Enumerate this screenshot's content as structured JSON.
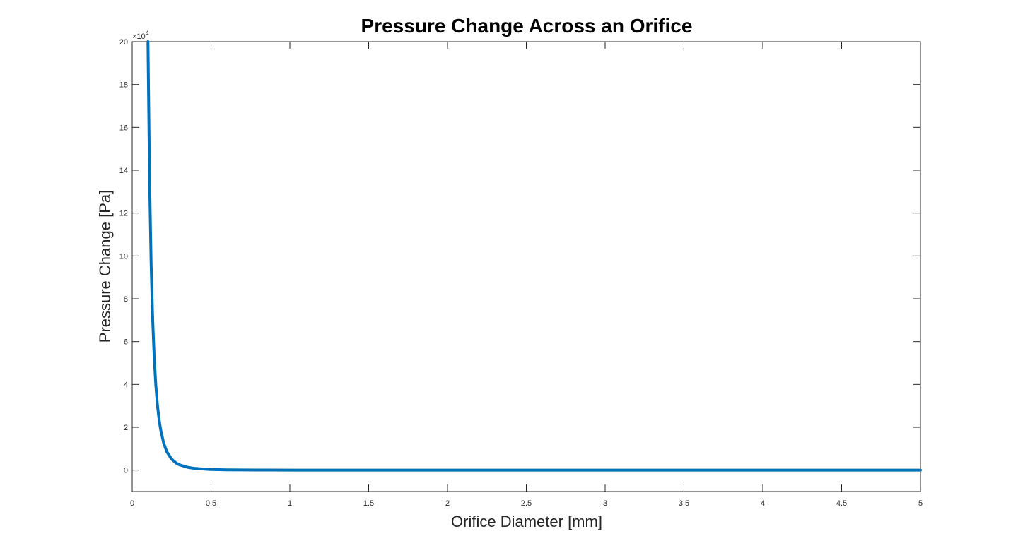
{
  "chart_data": {
    "type": "line",
    "title": "Pressure Change Across an Orifice",
    "xlabel": "Orifice Diameter [mm]",
    "ylabel": "Pressure Change [Pa]",
    "xlim": [
      0,
      5
    ],
    "ylim": [
      -1,
      20
    ],
    "y_scale_factor_label": "×10",
    "y_scale_exponent": "4",
    "x_ticks": [
      "0",
      "0.5",
      "1",
      "1.5",
      "2",
      "2.5",
      "3",
      "3.5",
      "4",
      "4.5",
      "5"
    ],
    "y_ticks": [
      "0",
      "2",
      "4",
      "6",
      "8",
      "10",
      "12",
      "14",
      "16",
      "18",
      "20"
    ],
    "grid": false,
    "series": [
      {
        "color": "#0072BD",
        "x": [
          0.1,
          0.11,
          0.12,
          0.13,
          0.14,
          0.15,
          0.16,
          0.17,
          0.18,
          0.2,
          0.22,
          0.25,
          0.28,
          0.3,
          0.35,
          0.4,
          0.45,
          0.5,
          0.6,
          0.7,
          0.8,
          1.0,
          1.5,
          2.0,
          3.0,
          4.0,
          5.0
        ],
        "values": [
          20.0,
          13.66,
          9.65,
          7.0,
          5.21,
          3.95,
          3.05,
          2.39,
          1.91,
          1.25,
          0.854,
          0.512,
          0.325,
          0.247,
          0.133,
          0.078,
          0.049,
          0.032,
          0.0154,
          0.0083,
          0.0049,
          0.002,
          0.0004,
          0.0001,
          0.0,
          0.0,
          0.0
        ]
      }
    ]
  }
}
